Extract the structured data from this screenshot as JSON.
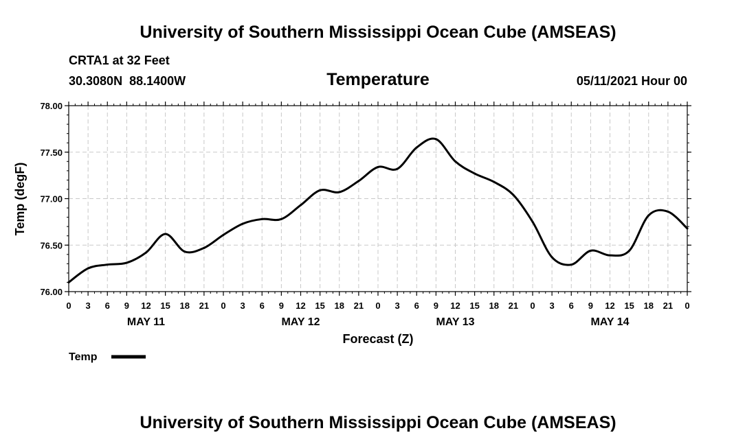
{
  "header": {
    "title": "University of Southern Mississippi Ocean Cube (AMSEAS)",
    "station": "CRTA1 at 32 Feet",
    "coords": "30.3080N  88.1400W",
    "variable": "Temperature",
    "datetime": "05/11/2021 Hour 00"
  },
  "footer": {
    "title": "University of Southern Mississippi Ocean Cube (AMSEAS)"
  },
  "legend": {
    "label": "Temp"
  },
  "colors": {
    "line": "#000000",
    "grid": "#c8c8c8",
    "background": "#ffffff"
  },
  "chart_data": {
    "type": "line",
    "title": "Temperature",
    "xlabel": "Forecast (Z)",
    "ylabel": "Temp (degF)",
    "ylim": [
      76.0,
      78.0
    ],
    "yticks": [
      "76.00",
      "76.50",
      "77.00",
      "77.50",
      "78.00"
    ],
    "xlim": [
      0,
      96
    ],
    "xtick_labels": [
      "0",
      "3",
      "6",
      "9",
      "12",
      "15",
      "18",
      "21",
      "0",
      "3",
      "6",
      "9",
      "12",
      "15",
      "18",
      "21",
      "0",
      "3",
      "6",
      "9",
      "12",
      "15",
      "18",
      "21",
      "0",
      "3",
      "6",
      "9",
      "12",
      "15",
      "18",
      "21",
      "0"
    ],
    "day_labels": [
      {
        "label": "MAY 11",
        "hour": 12
      },
      {
        "label": "MAY 12",
        "hour": 36
      },
      {
        "label": "MAY 13",
        "hour": 60
      },
      {
        "label": "MAY 14",
        "hour": 84
      }
    ],
    "grid": true,
    "series": [
      {
        "name": "Temp",
        "x": [
          0,
          3,
          6,
          9,
          12,
          15,
          18,
          21,
          24,
          27,
          30,
          33,
          36,
          39,
          42,
          45,
          48,
          51,
          54,
          57,
          60,
          63,
          66,
          69,
          72,
          75,
          78,
          81,
          84,
          87,
          90,
          93,
          96
        ],
        "values": [
          76.1,
          76.25,
          76.29,
          76.31,
          76.42,
          76.62,
          76.43,
          76.47,
          76.61,
          76.73,
          76.78,
          76.78,
          76.93,
          77.09,
          77.07,
          77.19,
          77.34,
          77.32,
          77.55,
          77.64,
          77.4,
          77.27,
          77.18,
          77.04,
          76.75,
          76.37,
          76.29,
          76.44,
          76.39,
          76.44,
          76.82,
          76.86,
          76.68
        ]
      }
    ]
  }
}
